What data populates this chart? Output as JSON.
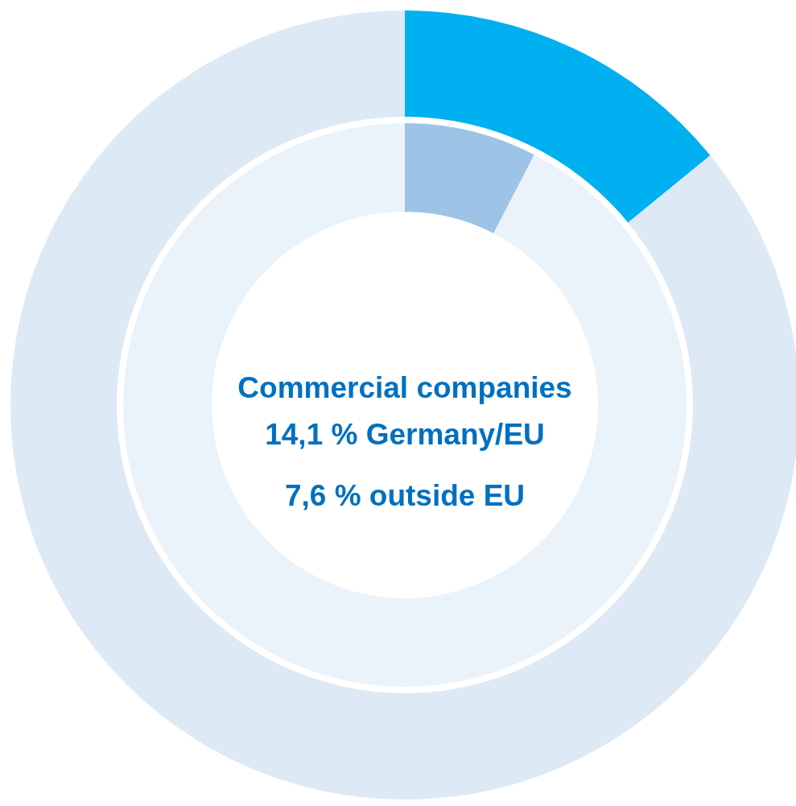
{
  "chart_data": [
    {
      "type": "donut",
      "categories": [
        null,
        null
      ],
      "values": [
        14.1,
        85.9
      ],
      "colors": [
        "#00b0f0",
        "#dde9f5"
      ]
    },
    {
      "type": "donut",
      "title": "Commercial companies",
      "annotations": [
        "14,1 % Germany/EU",
        "7,6 % outside EU"
      ],
      "categories": [
        null,
        null
      ],
      "values": [
        7.6,
        92.4
      ],
      "colors": [
        "#9dc3e6",
        "#eaf2fa"
      ]
    }
  ]
}
